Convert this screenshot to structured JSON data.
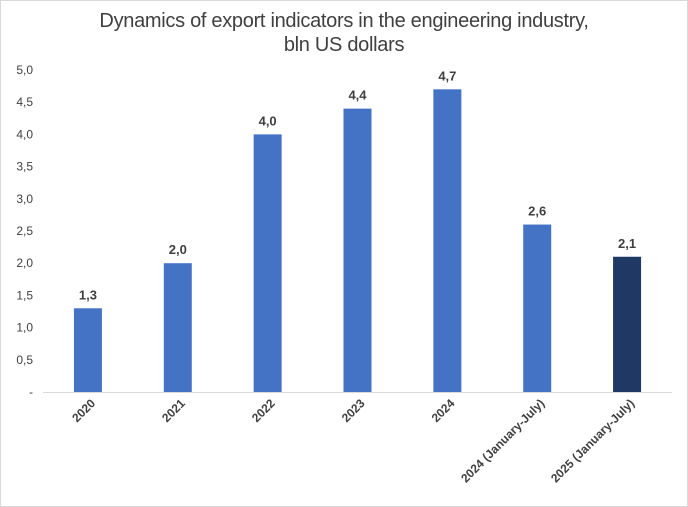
{
  "chart_data": {
    "type": "bar",
    "title_line1": "Dynamics of export indicators in the engineering industry,",
    "title_line2": "bln US dollars",
    "categories": [
      "2020",
      "2021",
      "2022",
      "2023",
      "2024",
      "2024 (January-July)",
      "2025 (January-July)"
    ],
    "values": [
      1.3,
      2.0,
      4.0,
      4.4,
      4.7,
      2.6,
      2.1
    ],
    "value_labels": [
      "1,3",
      "2,0",
      "4,0",
      "4,4",
      "4,7",
      "2,6",
      "2,1"
    ],
    "y_ticks": [
      0,
      0.5,
      1.0,
      1.5,
      2.0,
      2.5,
      3.0,
      3.5,
      4.0,
      4.5,
      5.0
    ],
    "y_tick_labels": [
      "-",
      "0,5",
      "1,0",
      "1,5",
      "2,0",
      "2,5",
      "3,0",
      "3,5",
      "4,0",
      "4,5",
      "5,0"
    ],
    "ylim": [
      0,
      5.0
    ],
    "xlabel": "",
    "ylabel": "",
    "grid": false,
    "legend": "none",
    "colors": {
      "default_bar": "#4472c4",
      "highlight_bar": "#203864",
      "axis": "#d9d9d9",
      "text": "#404040"
    },
    "highlight_index": 6
  }
}
